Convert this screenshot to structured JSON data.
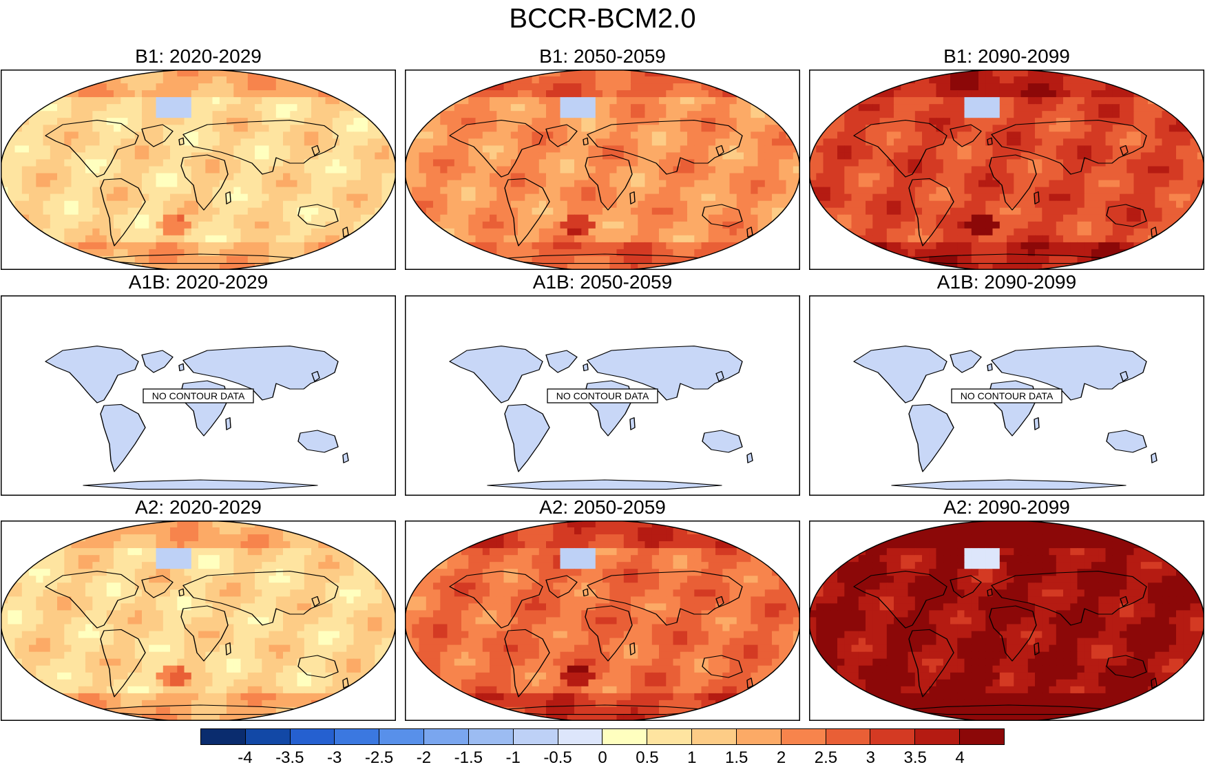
{
  "figure": {
    "title": "BCCR-BCM2.0"
  },
  "panels": [
    {
      "title": "B1: 2020-2029",
      "level": 1,
      "has_data": true
    },
    {
      "title": "B1: 2050-2059",
      "level": 2,
      "has_data": true
    },
    {
      "title": "B1: 2090-2099",
      "level": 3,
      "has_data": true
    },
    {
      "title": "A1B: 2020-2029",
      "has_data": false,
      "message": "NO CONTOUR DATA"
    },
    {
      "title": "A1B: 2050-2059",
      "has_data": false,
      "message": "NO CONTOUR DATA"
    },
    {
      "title": "A1B: 2090-2099",
      "has_data": false,
      "message": "NO CONTOUR DATA"
    },
    {
      "title": "A2: 2020-2029",
      "level": 1,
      "has_data": true
    },
    {
      "title": "A2: 2050-2059",
      "level": 2.5,
      "has_data": true
    },
    {
      "title": "A2: 2090-2099",
      "level": 4,
      "has_data": true
    }
  ],
  "colorbar": {
    "labels": [
      "-4",
      "-3.5",
      "-3",
      "-2.5",
      "-2",
      "-1.5",
      "-1",
      "-0.5",
      "0",
      "0.5",
      "1",
      "1.5",
      "2",
      "2.5",
      "3",
      "3.5",
      "4"
    ],
    "colors": [
      "#0a2c6e",
      "#1248a6",
      "#2560d0",
      "#3b78e0",
      "#5890ea",
      "#7aa6ef",
      "#9cbcf2",
      "#bed1f6",
      "#dde6fb",
      "#ffffbf",
      "#fee4a0",
      "#fdcc86",
      "#fcaa66",
      "#f7844c",
      "#e95f36",
      "#d43a23",
      "#b51b12",
      "#8c0808"
    ]
  }
}
